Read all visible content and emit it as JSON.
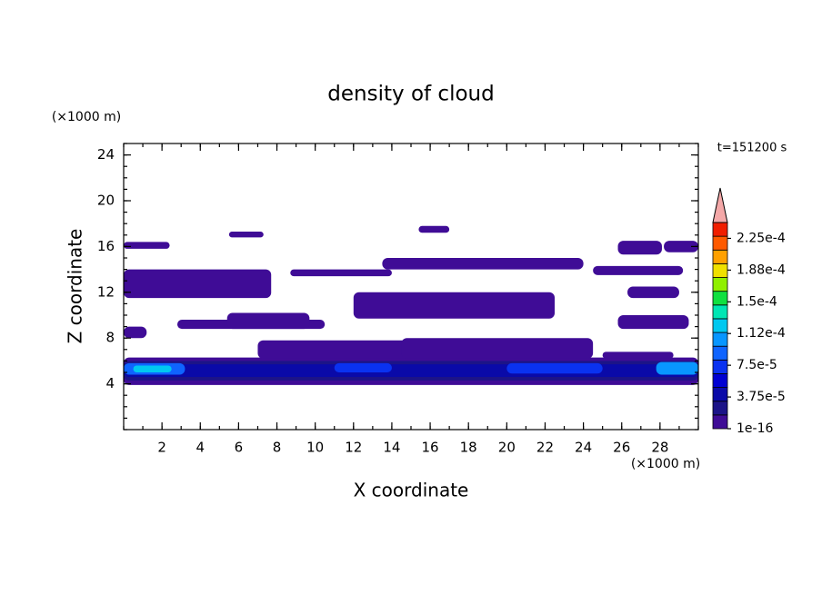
{
  "chart_data": {
    "type": "contour",
    "title": "density of cloud",
    "xlabel": "X coordinate",
    "ylabel": "Z coordinate",
    "xunit": "(×1000 m)",
    "yunit": "(×1000 m)",
    "time_label": "t=151200 s",
    "xlim": [
      0,
      30
    ],
    "ylim": [
      0,
      25
    ],
    "xticks": [
      2,
      4,
      6,
      8,
      10,
      12,
      14,
      16,
      18,
      20,
      22,
      24,
      26,
      28
    ],
    "yticks": [
      4,
      8,
      12,
      16,
      20,
      24
    ],
    "colorbar": {
      "clim": [
        1e-16,
        0.00024375
      ],
      "colors": [
        "#3f0c96",
        "#1c1488",
        "#0a0aa8",
        "#0000d2",
        "#0a32f0",
        "#0f64ff",
        "#0896ff",
        "#00c8f0",
        "#00e6b4",
        "#10e040",
        "#90f000",
        "#f0e000",
        "#ffa000",
        "#ff5a00",
        "#f01e00"
      ],
      "over_color": "#f4a8a8",
      "ticks": [
        1e-16,
        {
          "value": 3.75e-05,
          "label": "3.75e-5"
        },
        {
          "value": 7.5e-05,
          "label": "7.5e-5"
        },
        {
          "value": 0.0001125,
          "label": "1.12e-4"
        },
        {
          "value": 0.00015,
          "label": "1.5e-4"
        },
        {
          "value": 0.0001875,
          "label": "1.88e-4"
        },
        {
          "value": 0.000225,
          "label": "2.25e-4"
        }
      ]
    },
    "regions": [
      {
        "x": [
          0,
          30
        ],
        "z": [
          3.9,
          6.3
        ],
        "value": 5e-06
      },
      {
        "x": [
          0,
          30
        ],
        "z": [
          4.3,
          6.0
        ],
        "value": 2e-05
      },
      {
        "x": [
          0,
          30
        ],
        "z": [
          4.6,
          5.7
        ],
        "value": 4e-05
      },
      {
        "x": [
          0,
          3.2
        ],
        "z": [
          4.8,
          5.8
        ],
        "value": 9e-05
      },
      {
        "x": [
          0.5,
          2.5
        ],
        "z": [
          5.0,
          5.6
        ],
        "value": 0.00012
      },
      {
        "x": [
          11,
          14
        ],
        "z": [
          5.0,
          5.8
        ],
        "value": 7e-05
      },
      {
        "x": [
          20,
          25
        ],
        "z": [
          4.9,
          5.8
        ],
        "value": 7e-05
      },
      {
        "x": [
          27.8,
          30
        ],
        "z": [
          4.8,
          5.9
        ],
        "value": 0.00011
      },
      {
        "x": [
          0,
          2.4
        ],
        "z": [
          15.8,
          16.4
        ],
        "value": 5e-06
      },
      {
        "x": [
          0,
          7.7
        ],
        "z": [
          11.5,
          14.0
        ],
        "value": 5e-06
      },
      {
        "x": [
          5.5,
          7.3
        ],
        "z": [
          16.8,
          17.3
        ],
        "value": 5e-06
      },
      {
        "x": [
          15.4,
          17
        ],
        "z": [
          17.2,
          17.8
        ],
        "value": 5e-06
      },
      {
        "x": [
          13.5,
          24
        ],
        "z": [
          14.0,
          15.0
        ],
        "value": 5e-06
      },
      {
        "x": [
          8.7,
          14
        ],
        "z": [
          13.4,
          14.0
        ],
        "value": 5e-06
      },
      {
        "x": [
          12,
          22.5
        ],
        "z": [
          9.7,
          12.0
        ],
        "value": 5e-06
      },
      {
        "x": [
          2.8,
          10.5
        ],
        "z": [
          8.8,
          9.6
        ],
        "value": 5e-06
      },
      {
        "x": [
          5.4,
          9.7
        ],
        "z": [
          8.8,
          10.2
        ],
        "value": 5e-06
      },
      {
        "x": [
          0,
          1.2
        ],
        "z": [
          8.0,
          9.0
        ],
        "value": 5e-06
      },
      {
        "x": [
          7,
          19.5
        ],
        "z": [
          6.2,
          7.8
        ],
        "value": 5e-06
      },
      {
        "x": [
          14.5,
          24.5
        ],
        "z": [
          6.2,
          8.0
        ],
        "value": 5e-06
      },
      {
        "x": [
          25,
          28.7
        ],
        "z": [
          6.2,
          6.8
        ],
        "value": 5e-06
      },
      {
        "x": [
          26.3,
          29
        ],
        "z": [
          11.5,
          12.5
        ],
        "value": 5e-06
      },
      {
        "x": [
          25.8,
          28.1
        ],
        "z": [
          15.3,
          16.5
        ],
        "value": 5e-06
      },
      {
        "x": [
          28.2,
          30
        ],
        "z": [
          15.5,
          16.5
        ],
        "value": 5e-06
      },
      {
        "x": [
          25.8,
          29.5
        ],
        "z": [
          8.8,
          10.0
        ],
        "value": 5e-06
      },
      {
        "x": [
          24.5,
          29.2
        ],
        "z": [
          13.5,
          14.3
        ],
        "value": 5e-06
      }
    ]
  }
}
